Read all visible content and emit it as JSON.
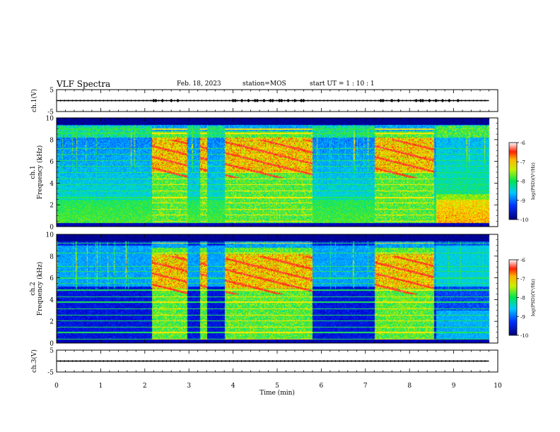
{
  "header": {
    "title": "VLF Spectra",
    "date": "Feb. 18, 2023",
    "station": "station=MOS",
    "start": "start  UT =   1 : 10 : 1"
  },
  "chart_data": [
    {
      "type": "line",
      "panel": "ch1-voltage",
      "ylabel": "ch.1(V)",
      "ylim": [
        -5,
        5
      ],
      "yticks": [
        "5",
        "-5"
      ],
      "xlim": [
        0,
        10
      ],
      "series": [
        {
          "level": 0,
          "x_end": 9.8
        }
      ],
      "burst_marks_x": [
        2.2,
        2.25,
        2.4,
        2.6,
        2.75,
        4.0,
        4.05,
        4.2,
        4.35,
        4.5,
        4.55,
        4.7,
        4.85,
        4.9,
        5.05,
        5.1,
        5.25,
        5.4,
        5.55,
        5.6,
        7.35,
        7.4,
        7.6,
        7.75,
        8.15,
        8.25,
        8.3,
        8.45,
        8.6,
        8.75,
        8.9,
        9.1
      ]
    },
    {
      "type": "heatmap",
      "panel": "ch1-spectrogram",
      "ylabel_line1": "ch.1",
      "ylabel_line2": "Frequency (kHz)",
      "ylim": [
        0,
        10
      ],
      "yticks": [
        0,
        2,
        4,
        6,
        8,
        10
      ],
      "xlim": [
        0,
        10
      ],
      "data_end_min": 9.8,
      "active_intervals_min": [
        [
          2.15,
          2.95
        ],
        [
          3.25,
          3.4
        ],
        [
          3.8,
          5.8
        ],
        [
          7.2,
          8.55
        ]
      ],
      "colorbar": {
        "label": "log(PSD)(V²/Hz)",
        "range": [
          -10,
          -6
        ],
        "ticks": [
          "-6",
          "-7",
          "-8",
          "-9",
          "-10"
        ]
      }
    },
    {
      "type": "heatmap",
      "panel": "ch2-spectrogram",
      "ylabel_line1": "ch.2",
      "ylabel_line2": "Frequency (kHz)",
      "ylim": [
        0,
        10
      ],
      "yticks": [
        0,
        2,
        4,
        6,
        8,
        10
      ],
      "xlim": [
        0,
        10
      ],
      "data_end_min": 9.8,
      "active_intervals_min": [
        [
          2.15,
          2.95
        ],
        [
          3.25,
          3.4
        ],
        [
          3.8,
          5.8
        ],
        [
          7.2,
          8.55
        ]
      ],
      "colorbar": {
        "label": "log(PSD)(V²/Hz)",
        "range": [
          -10,
          -6
        ],
        "ticks": [
          "-6",
          "-7",
          "-8",
          "-9",
          "-10"
        ]
      }
    },
    {
      "type": "line",
      "panel": "ch3-voltage",
      "ylabel": "ch.3(V)",
      "ylim": [
        -5,
        5
      ],
      "yticks": [
        "5",
        "-5"
      ],
      "xlim": [
        0,
        10
      ],
      "series": [
        {
          "level": 0,
          "x_end": 9.8
        }
      ],
      "xlabel": "Time (min)",
      "xticks": [
        0,
        1,
        2,
        3,
        4,
        5,
        6,
        7,
        8,
        9,
        10
      ]
    }
  ],
  "colors": {
    "scale": [
      "#00007a",
      "#0000d0",
      "#0050ff",
      "#00b4ff",
      "#00e6b4",
      "#32e632",
      "#b4f000",
      "#ffff00",
      "#ffa000",
      "#ff2000",
      "#ff90a0",
      "#ffffff"
    ]
  }
}
